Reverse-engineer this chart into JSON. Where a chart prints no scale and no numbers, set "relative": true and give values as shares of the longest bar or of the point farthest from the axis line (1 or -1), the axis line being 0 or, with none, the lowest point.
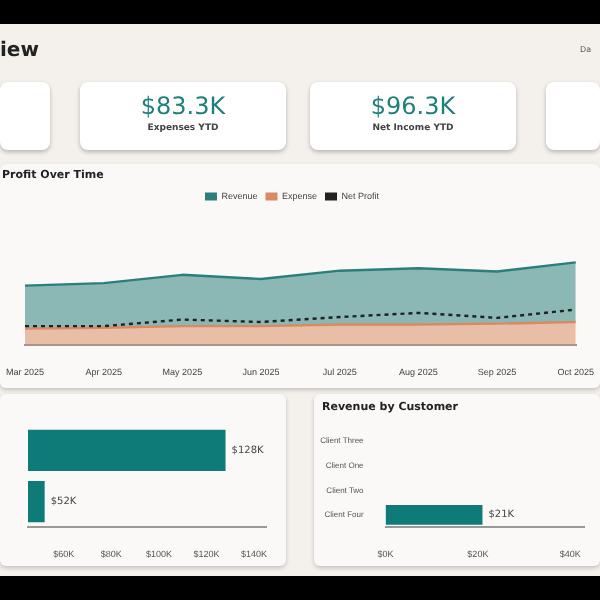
{
  "chart_data": [
    {
      "type": "other",
      "title": "iew",
      "subtitle": "Da",
      "annotations": [
        "$83.3K",
        "Expenses YTD",
        "$96.3K",
        "Net Income YTD"
      ]
    },
    {
      "type": "area",
      "title": "Profit Over Time",
      "relative": true,
      "legend": "top",
      "categories": [
        "Mar 2025",
        "Apr 2025",
        "May 2025",
        "Jun 2025",
        "Jul 2025",
        "Aug 2025",
        "Sep 2025",
        "Oct 2025"
      ],
      "series": [
        {
          "name": "Revenue",
          "color": "#2a7f7b",
          "values": [
            0.72,
            0.75,
            0.85,
            0.8,
            0.9,
            0.93,
            0.89,
            1
          ]
        },
        {
          "name": "Expense",
          "color": "#d98a62",
          "values": [
            0.2,
            0.21,
            0.23,
            0.23,
            0.25,
            0.25,
            0.26,
            0.28
          ]
        },
        {
          "name": "Net Profit",
          "type": "line",
          "color": "#222222",
          "line_style": "dashed",
          "values": [
            0.23,
            0.23,
            0.31,
            0.28,
            0.34,
            0.39,
            0.33,
            0.43
          ]
        }
      ]
    },
    {
      "type": "bar",
      "orientation": "horizontal",
      "categories": [
        null,
        null
      ],
      "values": [
        128,
        52
      ],
      "color": "#0f7b78",
      "value_labels": [
        "$128K",
        "$52K"
      ],
      "xlim": [
        45,
        145
      ],
      "xticks": [
        {
          "value": 60,
          "label": "$60K"
        },
        {
          "value": 80,
          "label": "$80K"
        },
        {
          "value": 100,
          "label": "$100K"
        },
        {
          "value": 120,
          "label": "$120K"
        },
        {
          "value": 140,
          "label": "$140K"
        }
      ]
    },
    {
      "type": "bar",
      "orientation": "horizontal",
      "title": "Revenue by Customer",
      "categories": [
        "Client Three",
        "Client One",
        "Client Two",
        "Client Four"
      ],
      "values": [
        null,
        null,
        null,
        21
      ],
      "color": "#0f7b78",
      "value_labels": [
        null,
        null,
        null,
        "$21K"
      ],
      "xlim": [
        0,
        43
      ],
      "xticks": [
        {
          "value": 0,
          "label": "$0K"
        },
        {
          "value": 20,
          "label": "$20K"
        },
        {
          "value": 40,
          "label": "$40K"
        }
      ]
    }
  ]
}
